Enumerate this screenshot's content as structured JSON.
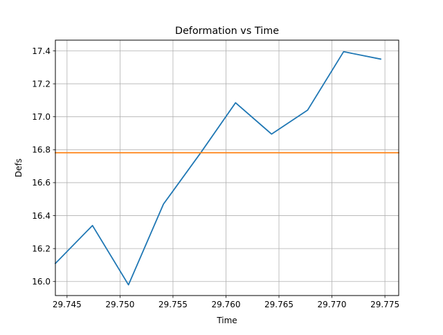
{
  "chart_data": {
    "type": "line",
    "title": "Deformation vs Time",
    "xlabel": "Time",
    "ylabel": "Defs",
    "xlim": [
      29.7439,
      29.7763
    ],
    "ylim": [
      15.915,
      17.465
    ],
    "xticks": [
      29.745,
      29.75,
      29.755,
      29.76,
      29.765,
      29.77,
      29.775
    ],
    "xtick_labels": [
      "29.745",
      "29.750",
      "29.755",
      "29.760",
      "29.765",
      "29.770",
      "29.775"
    ],
    "yticks": [
      16.0,
      16.2,
      16.4,
      16.6,
      16.8,
      17.0,
      17.2,
      17.4
    ],
    "ytick_labels": [
      "16.0",
      "16.2",
      "16.4",
      "16.6",
      "16.8",
      "17.0",
      "17.2",
      "17.4"
    ],
    "grid": true,
    "series": [
      {
        "color": "#1f77b4",
        "x": [
          29.7439,
          29.7474,
          29.7508,
          29.7541,
          29.7576,
          29.7609,
          29.7643,
          29.7677,
          29.7711,
          29.7746
        ],
        "y": [
          16.11,
          16.34,
          15.98,
          16.47,
          16.78,
          17.085,
          16.895,
          17.04,
          17.395,
          17.35
        ]
      },
      {
        "color": "#ff7f0e",
        "x": [
          29.7439,
          29.7763
        ],
        "y": [
          16.782,
          16.782
        ]
      }
    ]
  }
}
